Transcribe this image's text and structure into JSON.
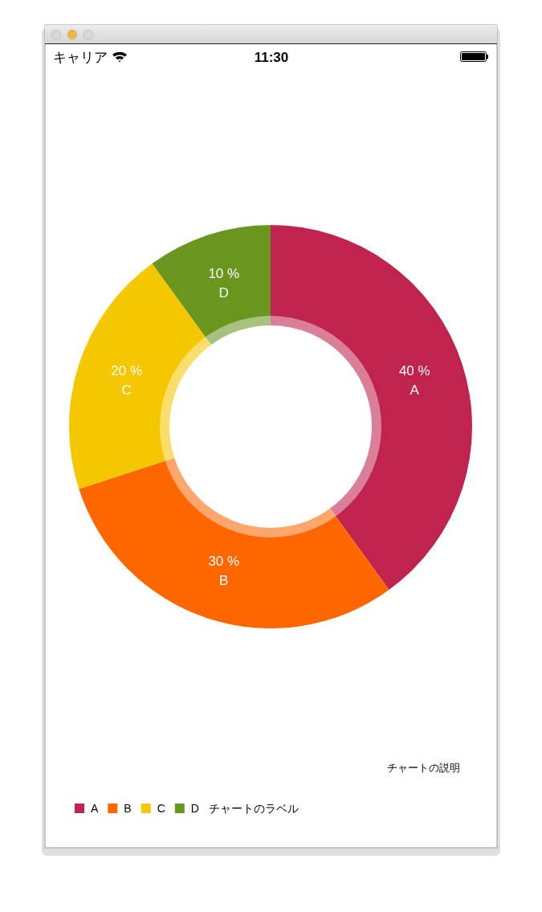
{
  "chart_data": {
    "type": "donut",
    "categories": [
      "A",
      "B",
      "C",
      "D"
    ],
    "values": [
      40,
      30,
      20,
      10
    ],
    "colors": [
      "#c1234f",
      "#fe6600",
      "#f5c700",
      "#6a961f"
    ],
    "value_labels": [
      "40 %",
      "30 %",
      "20 %",
      "10 %"
    ],
    "legend": "bottom left",
    "legend_title": "チャートのラベル",
    "annotations": [
      "チャートの説明",
      "キャリア",
      "11:30"
    ]
  }
}
